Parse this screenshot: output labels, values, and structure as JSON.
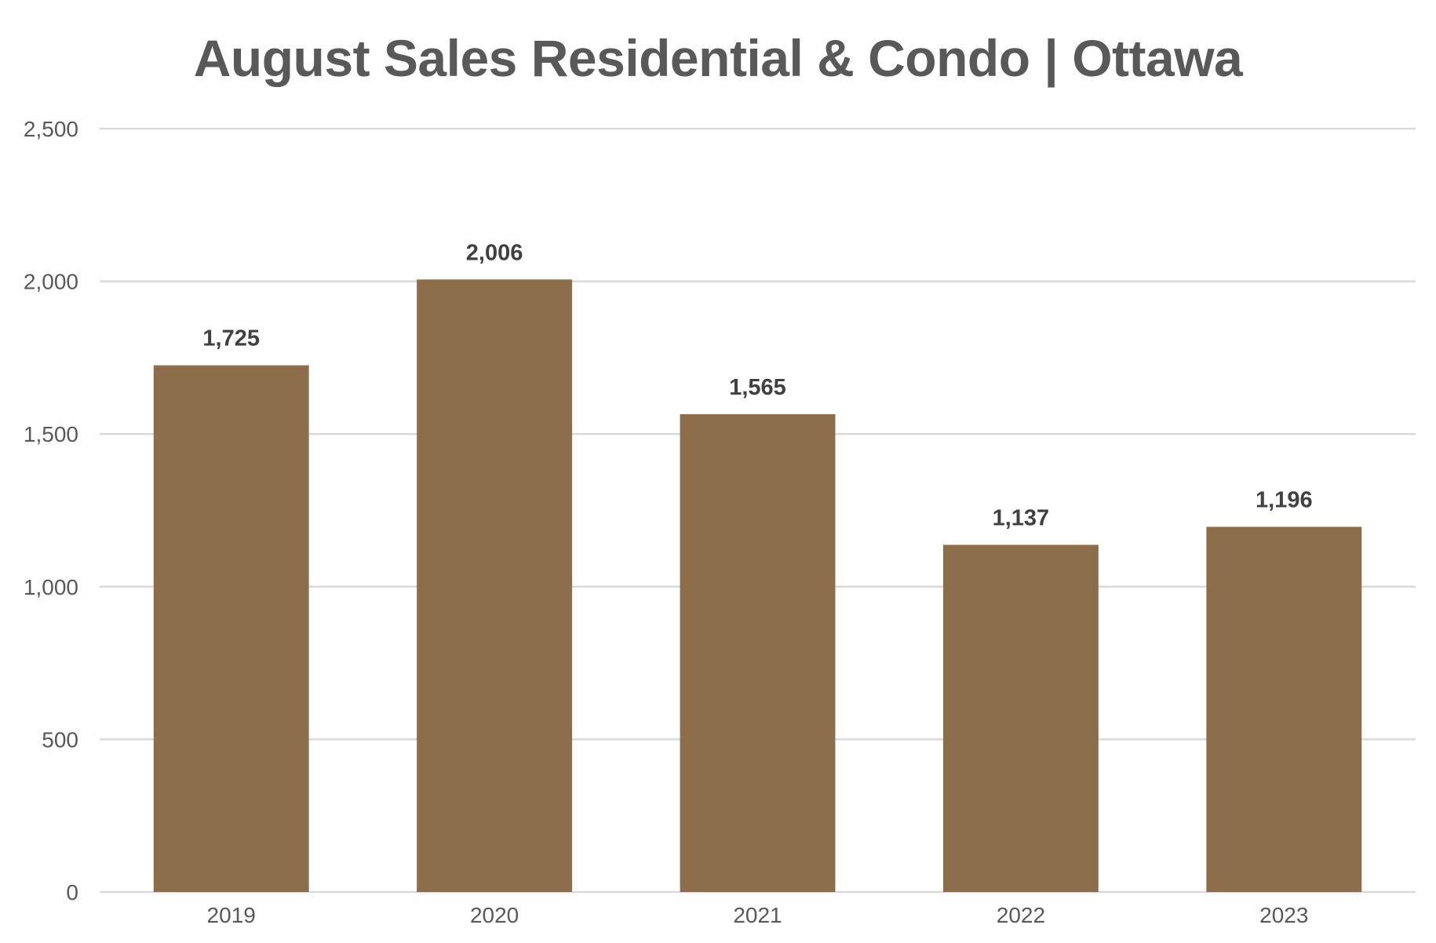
{
  "chart_data": {
    "type": "bar",
    "title": "August Sales Residential & Condo | Ottawa",
    "categories": [
      "2019",
      "2020",
      "2021",
      "2022",
      "2023"
    ],
    "values": [
      1725,
      2006,
      1565,
      1137,
      1196
    ],
    "data_labels": [
      "1,725",
      "2,006",
      "1,565",
      "1,137",
      "1,196"
    ],
    "ylim": [
      0,
      2500
    ],
    "yticks": [
      0,
      500,
      1000,
      1500,
      2000,
      2500
    ],
    "ytick_labels": [
      "0",
      "500",
      "1,000",
      "1,500",
      "2,000",
      "2,500"
    ],
    "xlabel": "",
    "ylabel": "",
    "grid": true,
    "legend": "none",
    "colors": {
      "bar": "#8C6F4A",
      "grid": "#D9D9D9",
      "title": "#595959",
      "tick": "#595959",
      "data_label": "#404040"
    }
  }
}
